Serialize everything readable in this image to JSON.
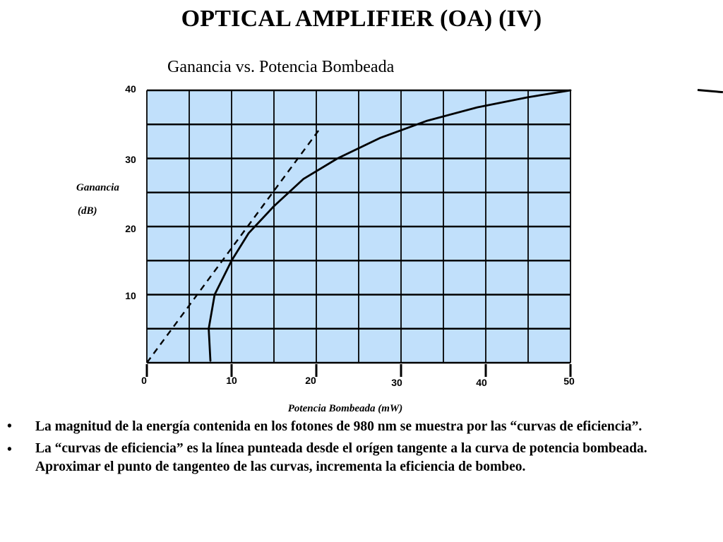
{
  "slide": {
    "title": "OPTICAL AMPLIFIER (OA) (IV)"
  },
  "chart_data": {
    "type": "line",
    "title": "Ganancia vs. Potencia Bombeada",
    "xlabel": "Potencia Bombeada (mW)",
    "ylabel_line1": "Ganancia",
    "ylabel_line2": "(dB)",
    "xlim": [
      0,
      50
    ],
    "ylim": [
      0,
      40
    ],
    "x_ticks": [
      0,
      10,
      20,
      30,
      40,
      50
    ],
    "y_ticks": [
      10,
      20,
      30,
      40
    ],
    "grid": true,
    "plot_background": "#c1e0fb",
    "series": [
      {
        "style": "solid",
        "points": [
          [
            7.5,
            0.3
          ],
          [
            7.3,
            5.0
          ],
          [
            8.0,
            10.0
          ],
          [
            10.0,
            15.0
          ],
          [
            12.0,
            19.0
          ],
          [
            15.0,
            23.0
          ],
          [
            18.5,
            27.0
          ],
          [
            22.5,
            30.0
          ],
          [
            27.5,
            33.0
          ],
          [
            33.0,
            35.5
          ],
          [
            39.0,
            37.5
          ],
          [
            45.0,
            39.0
          ],
          [
            50.0,
            40.0
          ]
        ]
      },
      {
        "style": "dashed",
        "points": [
          [
            0,
            0
          ],
          [
            20.5,
            34.5
          ]
        ]
      }
    ]
  },
  "bullets": [
    {
      "symbol": "•",
      "text": "La magnitud de la energía contenida en los fotones de 980 nm se muestra por las “curvas de eficiencia”."
    },
    {
      "symbol": "•",
      "text": "La “curvas de eficiencia” es la línea punteada desde el orígen tangente a la curva de potencia bombeada.  Aproximar el punto de tangenteo de las curvas, incrementa la eficiencia de bombeo."
    }
  ]
}
